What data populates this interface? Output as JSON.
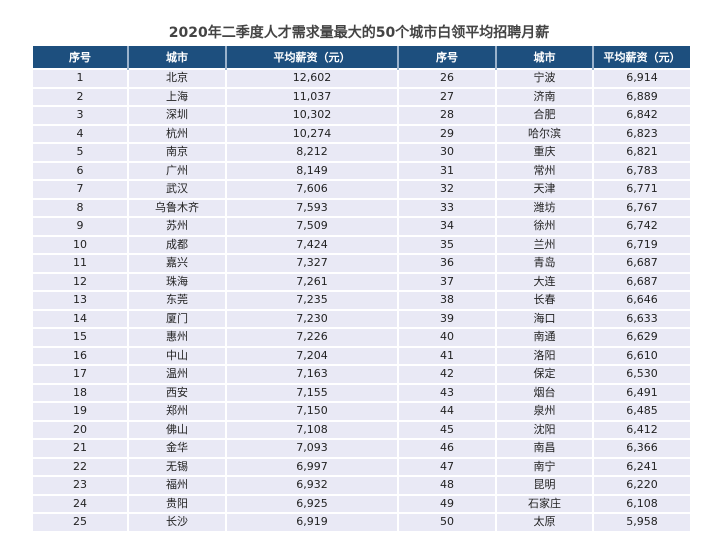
{
  "title": "2020年二季度人才需求量最大的50个城市白领平均招聘月薪",
  "headers": [
    "序号",
    "城市",
    "平均薪资（元）",
    "序号",
    "城市",
    "平均薪资（元）"
  ],
  "colors": {
    "header_bg": "#1d4f7e",
    "row_bg": "#e9e9f5"
  },
  "rows": [
    {
      "rank": "1",
      "city": "北京",
      "salary": "12,602"
    },
    {
      "rank": "2",
      "city": "上海",
      "salary": "11,037"
    },
    {
      "rank": "3",
      "city": "深圳",
      "salary": "10,302"
    },
    {
      "rank": "4",
      "city": "杭州",
      "salary": "10,274"
    },
    {
      "rank": "5",
      "city": "南京",
      "salary": "8,212"
    },
    {
      "rank": "6",
      "city": "广州",
      "salary": "8,149"
    },
    {
      "rank": "7",
      "city": "武汉",
      "salary": "7,606"
    },
    {
      "rank": "8",
      "city": "乌鲁木齐",
      "salary": "7,593"
    },
    {
      "rank": "9",
      "city": "苏州",
      "salary": "7,509"
    },
    {
      "rank": "10",
      "city": "成都",
      "salary": "7,424"
    },
    {
      "rank": "11",
      "city": "嘉兴",
      "salary": "7,327"
    },
    {
      "rank": "12",
      "city": "珠海",
      "salary": "7,261"
    },
    {
      "rank": "13",
      "city": "东莞",
      "salary": "7,235"
    },
    {
      "rank": "14",
      "city": "厦门",
      "salary": "7,230"
    },
    {
      "rank": "15",
      "city": "惠州",
      "salary": "7,226"
    },
    {
      "rank": "16",
      "city": "中山",
      "salary": "7,204"
    },
    {
      "rank": "17",
      "city": "温州",
      "salary": "7,163"
    },
    {
      "rank": "18",
      "city": "西安",
      "salary": "7,155"
    },
    {
      "rank": "19",
      "city": "郑州",
      "salary": "7,150"
    },
    {
      "rank": "20",
      "city": "佛山",
      "salary": "7,108"
    },
    {
      "rank": "21",
      "city": "金华",
      "salary": "7,093"
    },
    {
      "rank": "22",
      "city": "无锡",
      "salary": "6,997"
    },
    {
      "rank": "23",
      "city": "福州",
      "salary": "6,932"
    },
    {
      "rank": "24",
      "city": "贵阳",
      "salary": "6,925"
    },
    {
      "rank": "25",
      "city": "长沙",
      "salary": "6,919"
    },
    {
      "rank": "26",
      "city": "宁波",
      "salary": "6,914"
    },
    {
      "rank": "27",
      "city": "济南",
      "salary": "6,889"
    },
    {
      "rank": "28",
      "city": "合肥",
      "salary": "6,842"
    },
    {
      "rank": "29",
      "city": "哈尔滨",
      "salary": "6,823"
    },
    {
      "rank": "30",
      "city": "重庆",
      "salary": "6,821"
    },
    {
      "rank": "31",
      "city": "常州",
      "salary": "6,783"
    },
    {
      "rank": "32",
      "city": "天津",
      "salary": "6,771"
    },
    {
      "rank": "33",
      "city": "潍坊",
      "salary": "6,767"
    },
    {
      "rank": "34",
      "city": "徐州",
      "salary": "6,742"
    },
    {
      "rank": "35",
      "city": "兰州",
      "salary": "6,719"
    },
    {
      "rank": "36",
      "city": "青岛",
      "salary": "6,687"
    },
    {
      "rank": "37",
      "city": "大连",
      "salary": "6,687"
    },
    {
      "rank": "38",
      "city": "长春",
      "salary": "6,646"
    },
    {
      "rank": "39",
      "city": "海口",
      "salary": "6,633"
    },
    {
      "rank": "40",
      "city": "南通",
      "salary": "6,629"
    },
    {
      "rank": "41",
      "city": "洛阳",
      "salary": "6,610"
    },
    {
      "rank": "42",
      "city": "保定",
      "salary": "6,530"
    },
    {
      "rank": "43",
      "city": "烟台",
      "salary": "6,491"
    },
    {
      "rank": "44",
      "city": "泉州",
      "salary": "6,485"
    },
    {
      "rank": "45",
      "city": "沈阳",
      "salary": "6,412"
    },
    {
      "rank": "46",
      "city": "南昌",
      "salary": "6,366"
    },
    {
      "rank": "47",
      "city": "南宁",
      "salary": "6,241"
    },
    {
      "rank": "48",
      "city": "昆明",
      "salary": "6,220"
    },
    {
      "rank": "49",
      "city": "石家庄",
      "salary": "6,108"
    },
    {
      "rank": "50",
      "city": "太原",
      "salary": "5,958"
    }
  ]
}
